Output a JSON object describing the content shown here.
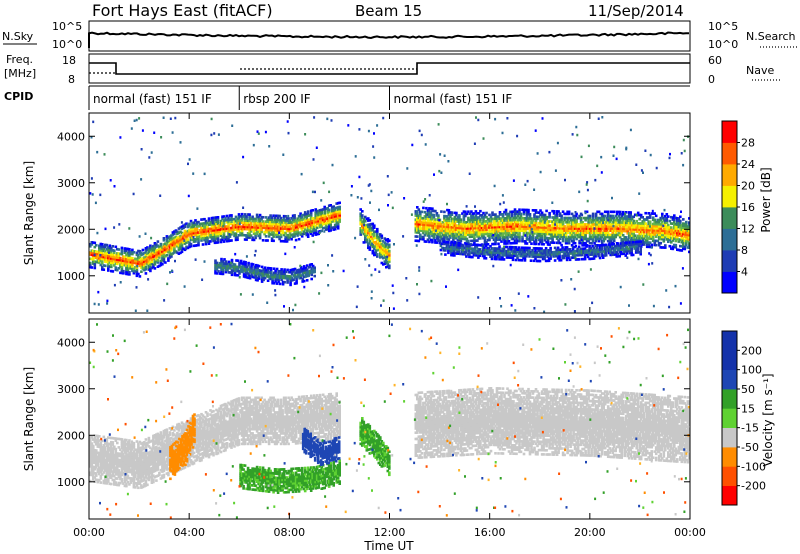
{
  "header": {
    "station": "Fort Hays East (fitACF)",
    "beam": "Beam 15",
    "date": "11/Sep/2014"
  },
  "noise_panel": {
    "left_label": "N.Sky",
    "right_label": "N.Search",
    "left_ticks": [
      "10^5",
      "10^0"
    ],
    "right_ticks": [
      "10^5",
      "10^0"
    ]
  },
  "freq_panel": {
    "left_label_1": "Freq.",
    "left_label_2": "[MHz]",
    "right_label": "Nave",
    "left_ticks": [
      "18",
      "8"
    ],
    "right_ticks": [
      "60",
      "0"
    ],
    "cpid_label": "CPID"
  },
  "cpid_segments": [
    {
      "label": "normal (fast) 151 IF",
      "start_h": 0,
      "end_h": 6
    },
    {
      "label": "rbsp 200 IF",
      "start_h": 6,
      "end_h": 12
    },
    {
      "label": "normal (fast) 151 IF",
      "start_h": 12,
      "end_h": 24
    }
  ],
  "colors": {
    "power_scale": [
      "#0000ff",
      "#1e3cb4",
      "#2d6e96",
      "#3c8c5a",
      "#64b44b",
      "#f5f000",
      "#ffaa00",
      "#ff5a00",
      "#ff0000"
    ],
    "velocity_scale": [
      "#ff0000",
      "#ff5000",
      "#ff8c00",
      "#ffb428",
      "#c8c8c8",
      "#c8c8c8",
      "#5fd232",
      "#32a028",
      "#1e46b4",
      "#1432aa"
    ]
  },
  "chart_data": [
    {
      "type": "heatmap",
      "name": "power",
      "ylabel": "Slant Range [km]",
      "yticks": [
        "1000",
        "2000",
        "3000",
        "4000"
      ],
      "ylim": [
        200,
        4500
      ],
      "xlim": [
        0,
        24
      ],
      "colorbar": {
        "label": "Power [dB]",
        "ticks": [
          "4",
          "8",
          "12",
          "16",
          "20",
          "24",
          "28"
        ],
        "range": [
          0,
          32
        ]
      },
      "bands": [
        {
          "x": [
            0.0,
            1.0,
            2.0,
            3.0,
            4.0,
            6.0,
            8.0,
            9.0,
            10.0
          ],
          "y": [
            1450,
            1350,
            1250,
            1550,
            1900,
            2050,
            2000,
            2150,
            2300
          ],
          "width": 280,
          "peak": 28
        },
        {
          "x": [
            10.8,
            11.5,
            12.0
          ],
          "y": [
            2100,
            1650,
            1400
          ],
          "width": 320,
          "peak": 24
        },
        {
          "x": [
            13.0,
            15.0,
            17.0,
            19.0,
            21.0,
            23.0,
            24.0
          ],
          "y": [
            2100,
            2000,
            2050,
            2000,
            2000,
            1950,
            1850
          ],
          "width": 360,
          "peak": 26
        },
        {
          "x": [
            5.0,
            6.0,
            7.0,
            8.0,
            9.0
          ],
          "y": [
            1200,
            1150,
            1000,
            950,
            1100
          ],
          "width": 160,
          "peak": 12
        },
        {
          "x": [
            14.0,
            16.0,
            18.0,
            20.0,
            22.0
          ],
          "y": [
            1600,
            1500,
            1450,
            1500,
            1600
          ],
          "width": 150,
          "peak": 10
        }
      ]
    },
    {
      "type": "heatmap",
      "name": "velocity",
      "ylabel": "Slant Range [km]",
      "xlabel": "Time UT",
      "yticks": [
        "1000",
        "2000",
        "3000",
        "4000"
      ],
      "xticks": [
        "00:00",
        "04:00",
        "08:00",
        "12:00",
        "16:00",
        "20:00",
        "00:00"
      ],
      "ylim": [
        200,
        4500
      ],
      "xlim": [
        0,
        24
      ],
      "colorbar": {
        "label": "Velocity [m s⁻¹]",
        "ticks": [
          "-200",
          "-100",
          "-50",
          "-15",
          "15",
          "50",
          "100",
          "200"
        ],
        "range": [
          -250,
          250
        ]
      },
      "bands": [
        {
          "x": [
            0.0,
            2.0,
            4.0,
            6.0,
            8.0,
            10.0
          ],
          "y": [
            1500,
            1350,
            1850,
            2300,
            2300,
            2400
          ],
          "width": 500,
          "v": 0
        },
        {
          "x": [
            13.0,
            16.0,
            20.0,
            24.0
          ],
          "y": [
            2200,
            2300,
            2250,
            2100
          ],
          "width": 700,
          "v": 0
        },
        {
          "x": [
            6.0,
            7.5,
            9.0,
            10.0
          ],
          "y": [
            1100,
            1000,
            1050,
            1200
          ],
          "width": 250,
          "v": 60
        },
        {
          "x": [
            10.8,
            11.5,
            12.0
          ],
          "y": [
            2100,
            1700,
            1400
          ],
          "width": 300,
          "v": 60
        },
        {
          "x": [
            8.5,
            9.2,
            10.0
          ],
          "y": [
            1900,
            1600,
            1700
          ],
          "width": 250,
          "v": 150
        },
        {
          "x": [
            3.2,
            3.8,
            4.2
          ],
          "y": [
            1400,
            1700,
            2200
          ],
          "width": 350,
          "v": -70
        }
      ]
    }
  ]
}
